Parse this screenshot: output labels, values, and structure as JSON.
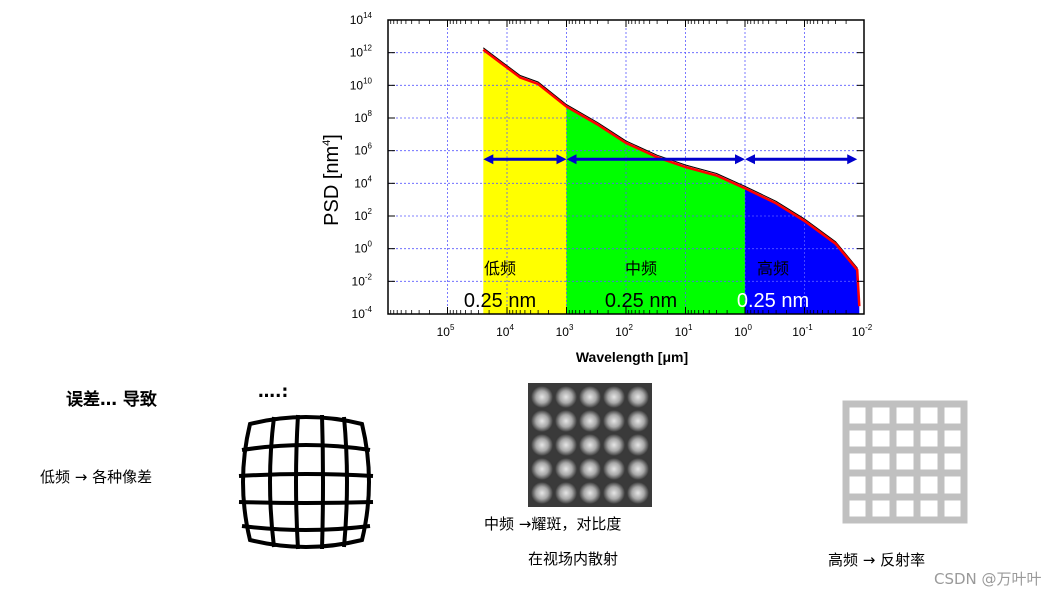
{
  "chart_data": {
    "type": "area",
    "xlabel": "Wavelength [μm]",
    "ylabel": "PSD [nm⁴]",
    "x_scale": "log-reversed",
    "y_scale": "log",
    "xlim": [
      1000000,
      0.01
    ],
    "ylim": [
      0.0001,
      100000000000000
    ],
    "x_ticks": [
      {
        "value": 100000,
        "label": "10",
        "exp": "5"
      },
      {
        "value": 10000,
        "label": "10",
        "exp": "4"
      },
      {
        "value": 1000,
        "label": "10",
        "exp": "3"
      },
      {
        "value": 100,
        "label": "10",
        "exp": "2"
      },
      {
        "value": 10,
        "label": "10",
        "exp": "1"
      },
      {
        "value": 1,
        "label": "10",
        "exp": "0"
      },
      {
        "value": 0.1,
        "label": "10",
        "exp": "-1"
      },
      {
        "value": 0.01,
        "label": "10",
        "exp": "-2"
      }
    ],
    "y_ticks": [
      {
        "value": 100000000000000,
        "label": "10",
        "exp": "14"
      },
      {
        "value": 1000000000000,
        "label": "10",
        "exp": "12"
      },
      {
        "value": 10000000000,
        "label": "10",
        "exp": "10"
      },
      {
        "value": 100000000,
        "label": "10",
        "exp": "8"
      },
      {
        "value": 1000000,
        "label": "10",
        "exp": "6"
      },
      {
        "value": 10000,
        "label": "10",
        "exp": "4"
      },
      {
        "value": 100,
        "label": "10",
        "exp": "2"
      },
      {
        "value": 1,
        "label": "10",
        "exp": "0"
      },
      {
        "value": 0.01,
        "label": "10",
        "exp": "-2"
      },
      {
        "value": 0.0001,
        "label": "10",
        "exp": "-4"
      }
    ],
    "grid": true,
    "curve": {
      "x": [
        25000,
        12000,
        6000,
        3000,
        1000,
        300,
        100,
        30,
        10,
        3,
        1,
        0.3,
        0.1,
        0.03,
        0.013,
        0.012
      ],
      "y": [
        1500000000000,
        200000000000,
        30000000000,
        12000000000,
        500000000,
        40000000,
        3000000,
        400000,
        100000,
        30000,
        5000,
        600,
        50,
        2,
        0.05,
        0.0003
      ]
    },
    "bands": [
      {
        "label": "低频",
        "value": "0.25 nm",
        "x_from": 25000,
        "x_to": 1000,
        "color": "#ffff00"
      },
      {
        "label": "中频",
        "value": "0.25 nm",
        "x_from": 1000,
        "x_to": 1,
        "color": "#00ff00"
      },
      {
        "label": "高频",
        "value": "0.25 nm",
        "x_from": 1,
        "x_to": 0.012,
        "color": "#0000ff"
      }
    ],
    "arrows": [
      {
        "x_from": 25000,
        "x_to": 1000,
        "y": 300000
      },
      {
        "x_from": 1000,
        "x_to": 1,
        "y": 300000
      },
      {
        "x_from": 1,
        "x_to": 0.013,
        "y": 300000
      }
    ],
    "colors": {
      "curve": "#ff0000",
      "arrow": "#0000cc",
      "grid": "#5a5aff"
    }
  },
  "text": {
    "error_heading": "误差…  导致",
    "error_dots": "….:",
    "low_caption": "低频 → 各种像差",
    "mid_caption_1": "中频 →耀斑，对比度",
    "mid_caption_2": "在视场内散射",
    "high_caption": "高频 → 反射率",
    "watermark": "CSDN @万叶叶"
  },
  "colors": {
    "mid_image_bg": "#3a3a3a",
    "mid_spot": "#d8d8d8",
    "high_grid": "#c0c0c0"
  }
}
